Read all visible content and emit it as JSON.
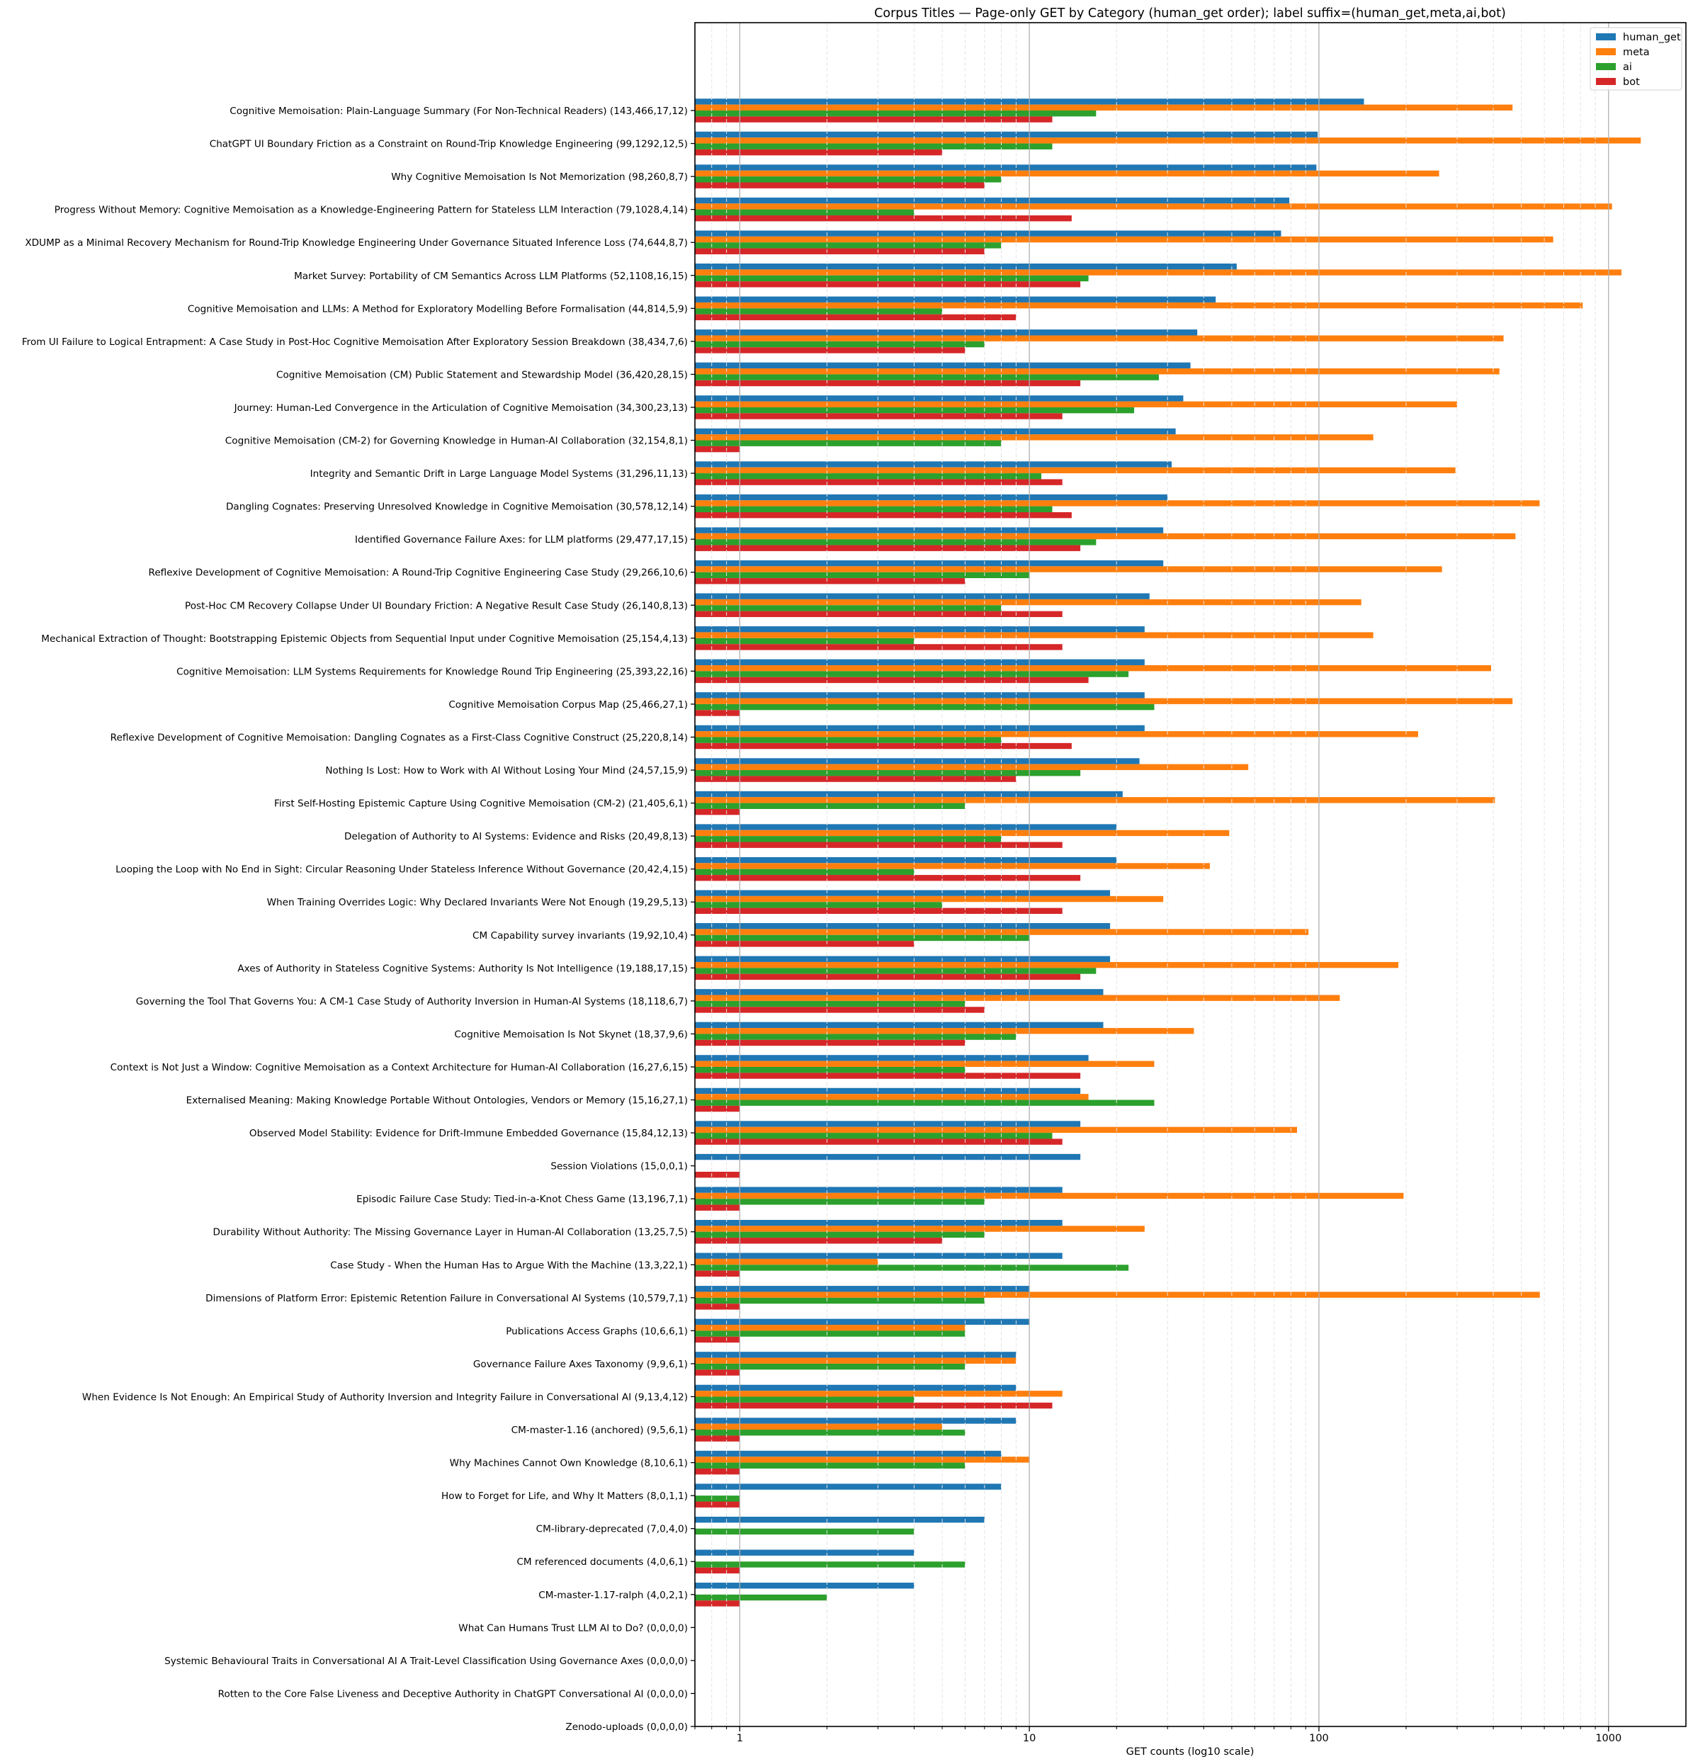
{
  "chart_data": {
    "type": "bar",
    "orientation": "horizontal",
    "title": "Corpus Titles — Page-only GET by Category (human_get order); label suffix=(human_get,meta,ai,bot)",
    "xlabel": "GET counts (log10 scale)",
    "ylabel": "",
    "xscale": "log10",
    "xlim": [
      0.7,
      1850
    ],
    "xticks": [
      1,
      10,
      100,
      1000
    ],
    "xtick_labels": [
      "1",
      "10",
      "100",
      "1000"
    ],
    "grid": "on (major solid, minor dashed, x-axis)",
    "legend_position": "top-right",
    "colors": {
      "human_get": "#1f77b4",
      "meta": "#ff7f0e",
      "ai": "#2ca02c",
      "bot": "#d62728"
    },
    "categories": [
      "Cognitive Memoisation: Plain-Language Summary (For Non-Technical Readers) (143,466,17,12)",
      "ChatGPT UI Boundary Friction as a Constraint on Round-Trip Knowledge Engineering (99,1292,12,5)",
      "Why Cognitive Memoisation Is Not Memorization (98,260,8,7)",
      "Progress Without Memory: Cognitive Memoisation as a Knowledge-Engineering Pattern for Stateless LLM Interaction (79,1028,4,14)",
      "XDUMP as a Minimal Recovery Mechanism for Round-Trip Knowledge Engineering Under Governance Situated Inference Loss (74,644,8,7)",
      "Market Survey: Portability of CM Semantics Across LLM Platforms (52,1108,16,15)",
      "Cognitive Memoisation and LLMs: A Method for Exploratory Modelling Before Formalisation (44,814,5,9)",
      "From UI Failure to Logical Entrapment: A Case Study in Post-Hoc Cognitive Memoisation After Exploratory Session Breakdown (38,434,7,6)",
      "Cognitive Memoisation (CM) Public Statement and Stewardship Model (36,420,28,15)",
      "Journey: Human-Led Convergence in the Articulation of Cognitive Memoisation (34,300,23,13)",
      "Cognitive Memoisation (CM-2) for Governing Knowledge in Human-AI Collaboration (32,154,8,1)",
      "Integrity and Semantic Drift in Large Language Model Systems (31,296,11,13)",
      "Dangling Cognates: Preserving Unresolved Knowledge in Cognitive Memoisation (30,578,12,14)",
      "Identified Governance Failure Axes: for LLM platforms (29,477,17,15)",
      "Reflexive Development of Cognitive Memoisation: A Round-Trip Cognitive Engineering Case Study (29,266,10,6)",
      "Post-Hoc CM Recovery Collapse Under UI Boundary Friction: A Negative Result Case Study (26,140,8,13)",
      "Mechanical Extraction of Thought: Bootstrapping Epistemic Objects from Sequential Input under Cognitive Memoisation (25,154,4,13)",
      "Cognitive Memoisation: LLM Systems Requirements for Knowledge Round Trip Engineering (25,393,22,16)",
      "Cognitive Memoisation Corpus Map (25,466,27,1)",
      "Reflexive Development of Cognitive Memoisation: Dangling Cognates as a First-Class Cognitive Construct (25,220,8,14)",
      "Nothing Is Lost: How to Work with AI Without Losing Your Mind (24,57,15,9)",
      "First Self-Hosting Epistemic Capture Using Cognitive Memoisation (CM-2) (21,405,6,1)",
      "Delegation of Authority to AI Systems: Evidence and Risks (20,49,8,13)",
      "Looping the Loop with No End in Sight: Circular Reasoning Under Stateless Inference Without Governance (20,42,4,15)",
      "When Training Overrides Logic: Why Declared Invariants Were Not Enough (19,29,5,13)",
      "CM Capability survey invariants (19,92,10,4)",
      "Axes of Authority in Stateless Cognitive Systems: Authority Is Not Intelligence (19,188,17,15)",
      "Governing the Tool That Governs You: A CM-1 Case Study of Authority Inversion in Human-AI Systems (18,118,6,7)",
      "Cognitive Memoisation Is Not Skynet (18,37,9,6)",
      "Context is Not Just a Window: Cognitive Memoisation as a Context Architecture for Human-AI Collaboration (16,27,6,15)",
      "Externalised Meaning: Making Knowledge Portable Without Ontologies, Vendors or Memory (15,16,27,1)",
      "Observed Model Stability: Evidence for Drift-Immune Embedded Governance (15,84,12,13)",
      "Session Violations (15,0,0,1)",
      "Episodic Failure Case Study: Tied-in-a-Knot Chess Game (13,196,7,1)",
      "Durability Without Authority: The Missing Governance Layer in Human-AI Collaboration (13,25,7,5)",
      "Case Study - When the Human Has to Argue With the Machine (13,3,22,1)",
      "Dimensions of Platform Error: Epistemic Retention Failure in Conversational AI Systems (10,579,7,1)",
      "Publications Access Graphs (10,6,6,1)",
      "Governance Failure Axes Taxonomy (9,9,6,1)",
      "When Evidence Is Not Enough: An Empirical Study of Authority Inversion and Integrity Failure in Conversational AI (9,13,4,12)",
      "CM-master-1.16 (anchored) (9,5,6,1)",
      "Why Machines Cannot Own Knowledge (8,10,6,1)",
      "How to Forget for Life, and Why It Matters (8,0,1,1)",
      "CM-library-deprecated (7,0,4,0)",
      "CM referenced documents (4,0,6,1)",
      "CM-master-1.17-ralph (4,0,2,1)",
      "What Can Humans Trust LLM AI to Do? (0,0,0,0)",
      "Systemic Behavioural Traits in Conversational AI A Trait-Level Classification Using Governance Axes (0,0,0,0)",
      "Rotten to the Core False Liveness and Deceptive Authority in ChatGPT Conversational AI (0,0,0,0)",
      "Zenodo-uploads (0,0,0,0)"
    ],
    "series": [
      {
        "name": "human_get",
        "values": [
          143,
          99,
          98,
          79,
          74,
          52,
          44,
          38,
          36,
          34,
          32,
          31,
          30,
          29,
          29,
          26,
          25,
          25,
          25,
          25,
          24,
          21,
          20,
          20,
          19,
          19,
          19,
          18,
          18,
          16,
          15,
          15,
          15,
          13,
          13,
          13,
          10,
          10,
          9,
          9,
          9,
          8,
          8,
          7,
          4,
          4,
          0,
          0,
          0,
          0
        ]
      },
      {
        "name": "meta",
        "values": [
          466,
          1292,
          260,
          1028,
          644,
          1108,
          814,
          434,
          420,
          300,
          154,
          296,
          578,
          477,
          266,
          140,
          154,
          393,
          466,
          220,
          57,
          405,
          49,
          42,
          29,
          92,
          188,
          118,
          37,
          27,
          16,
          84,
          0,
          196,
          25,
          3,
          579,
          6,
          9,
          13,
          5,
          10,
          0,
          0,
          0,
          0,
          0,
          0,
          0,
          0
        ]
      },
      {
        "name": "ai",
        "values": [
          17,
          12,
          8,
          4,
          8,
          16,
          5,
          7,
          28,
          23,
          8,
          11,
          12,
          17,
          10,
          8,
          4,
          22,
          27,
          8,
          15,
          6,
          8,
          4,
          5,
          10,
          17,
          6,
          9,
          6,
          27,
          12,
          0,
          7,
          7,
          22,
          7,
          6,
          6,
          4,
          6,
          6,
          1,
          4,
          6,
          2,
          0,
          0,
          0,
          0
        ]
      },
      {
        "name": "bot",
        "values": [
          12,
          5,
          7,
          14,
          7,
          15,
          9,
          6,
          15,
          13,
          1,
          13,
          14,
          15,
          6,
          13,
          13,
          16,
          1,
          14,
          9,
          1,
          13,
          15,
          13,
          4,
          15,
          7,
          6,
          15,
          1,
          13,
          1,
          1,
          5,
          1,
          1,
          1,
          1,
          12,
          1,
          1,
          1,
          0,
          1,
          1,
          0,
          0,
          0,
          0
        ]
      }
    ]
  }
}
